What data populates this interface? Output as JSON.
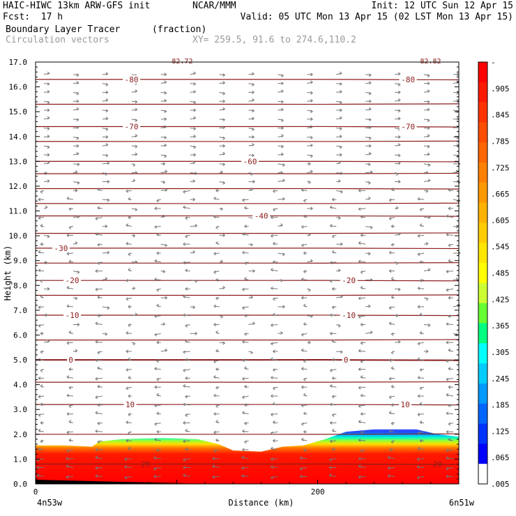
{
  "header": {
    "model_line": "HAIC-HIWC 13km ARW-GFS init",
    "org": "NCAR/MMM",
    "init": "Init: 12 UTC Sun 12 Apr 15",
    "fcst": "Fcst:  17 h",
    "valid": "Valid: 05 UTC Mon 13 Apr 15 (02 LST Mon 13 Apr 15)",
    "field1_name": "Boundary Layer Tracer",
    "field1_unit": "(fraction)",
    "field2_name": "Circulation vectors",
    "xy_label": "XY= 259.5, 91.6 to 274.6,110.2"
  },
  "chart_data": {
    "type": "heatmap",
    "ylabel": "Height (km)",
    "xlabel": "Distance (km)",
    "ylim": [
      0.0,
      17.0
    ],
    "xlim": [
      0,
      300
    ],
    "y_ticks": [
      "0.0",
      "1.0",
      "2.0",
      "3.0",
      "4.0",
      "5.0",
      "6.0",
      "7.0",
      "8.0",
      "9.0",
      "10.0",
      "11.0",
      "12.0",
      "13.0",
      "14.0",
      "15.0",
      "16.0",
      "17.0"
    ],
    "x_ticks": [
      {
        "value": 0,
        "label": "0"
      },
      {
        "value": 200,
        "label": "200"
      }
    ],
    "x_endpoints": {
      "left": "4n53w",
      "right": "6n51w"
    },
    "colorbar": {
      "labels": [
        "-",
        ".905",
        ".845",
        ".785",
        ".725",
        ".665",
        ".605",
        ".545",
        ".485",
        ".425",
        ".365",
        ".305",
        ".245",
        ".185",
        ".125",
        ".065",
        ".005"
      ],
      "colors": [
        "#ff0000",
        "#fb1a00",
        "#ff3300",
        "#ff4d00",
        "#ff6600",
        "#ff8000",
        "#ff9900",
        "#ffb300",
        "#ffcc00",
        "#ffe600",
        "#ffff00",
        "#ccff33",
        "#66ff33",
        "#00ff80",
        "#00ffff",
        "#00ccff",
        "#0099ff",
        "#0066ff",
        "#0033ff",
        "#0000ff",
        "#ffffff"
      ]
    },
    "temperature_contours": [
      {
        "label": "-80",
        "height": 16.3
      },
      {
        "label": "-70",
        "height": 14.4
      },
      {
        "label": "-60",
        "height": 13.0
      },
      {
        "label": "-40",
        "height": 10.8
      },
      {
        "label": "-30",
        "height": 9.5
      },
      {
        "label": "-20",
        "height": 8.2
      },
      {
        "label": "-10",
        "height": 6.8
      },
      {
        "label": "0",
        "height": 5.0
      },
      {
        "label": "10",
        "height": 3.2
      },
      {
        "label": "20",
        "height": 0.8
      }
    ],
    "contour_labels": [
      {
        "label": "-80",
        "x": 68,
        "height": 16.3
      },
      {
        "label": "-80",
        "x": 264,
        "height": 16.3
      },
      {
        "label": "-70",
        "x": 68,
        "height": 14.4
      },
      {
        "label": "-70",
        "x": 264,
        "height": 14.4
      },
      {
        "label": "-60",
        "x": 152,
        "height": 13.0
      },
      {
        "label": "-40",
        "x": 160,
        "height": 10.8
      },
      {
        "label": "-30",
        "x": 18,
        "height": 9.5
      },
      {
        "label": "-20",
        "x": 26,
        "height": 8.2
      },
      {
        "label": "-20",
        "x": 222,
        "height": 8.2
      },
      {
        "label": "-10",
        "x": 26,
        "height": 6.8
      },
      {
        "label": "-10",
        "x": 222,
        "height": 6.8
      },
      {
        "label": "0",
        "x": 25,
        "height": 5.0
      },
      {
        "label": "0",
        "x": 220,
        "height": 5.0
      },
      {
        "label": "10",
        "x": 67,
        "height": 3.2
      },
      {
        "label": "10",
        "x": 262,
        "height": 3.2
      },
      {
        "label": "20",
        "x": 78,
        "height": 0.8
      },
      {
        "label": "20",
        "x": 285,
        "height": 0.8
      }
    ],
    "top_labels": [
      {
        "label": "82.72",
        "x": 104
      },
      {
        "label": "82.82",
        "x": 280
      }
    ],
    "tracer_top": [
      {
        "x": 0,
        "top": 1.55
      },
      {
        "x": 20,
        "top": 1.55
      },
      {
        "x": 40,
        "top": 1.5
      },
      {
        "x": 45,
        "top": 1.7
      },
      {
        "x": 60,
        "top": 1.8
      },
      {
        "x": 90,
        "top": 1.85
      },
      {
        "x": 115,
        "top": 1.8
      },
      {
        "x": 130,
        "top": 1.6
      },
      {
        "x": 140,
        "top": 1.35
      },
      {
        "x": 160,
        "top": 1.3
      },
      {
        "x": 175,
        "top": 1.5
      },
      {
        "x": 190,
        "top": 1.55
      },
      {
        "x": 205,
        "top": 1.8
      },
      {
        "x": 220,
        "top": 2.1
      },
      {
        "x": 240,
        "top": 2.2
      },
      {
        "x": 270,
        "top": 2.2
      },
      {
        "x": 285,
        "top": 2.0
      },
      {
        "x": 300,
        "top": 1.9
      }
    ]
  }
}
